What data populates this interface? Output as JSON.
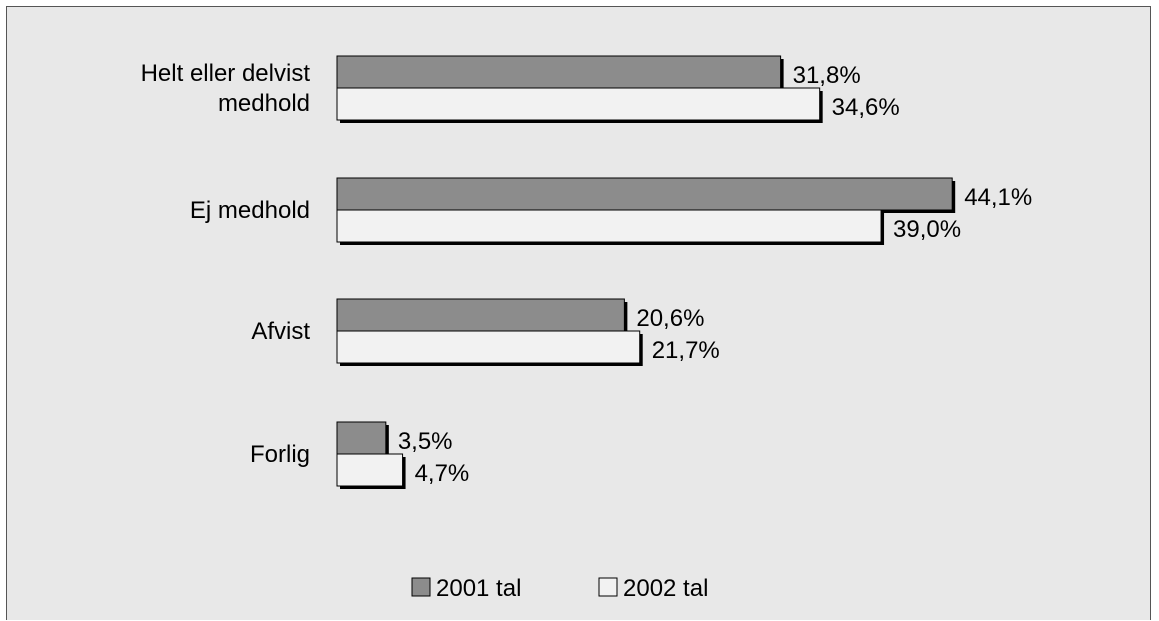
{
  "chart_data": {
    "type": "bar",
    "orientation": "horizontal",
    "categories": [
      [
        "Helt eller delvist",
        "medhold"
      ],
      [
        "Ej medhold"
      ],
      [
        "Afvist"
      ],
      [
        "Forlig"
      ]
    ],
    "series": [
      {
        "name": "2001 tal",
        "values": [
          31.8,
          44.1,
          20.6,
          3.5
        ],
        "labels": [
          "31,8%",
          "44,1%",
          "20,6%",
          "3,5%"
        ],
        "color": "#8c8c8c"
      },
      {
        "name": "2002 tal",
        "values": [
          34.6,
          39.0,
          21.7,
          4.7
        ],
        "labels": [
          "34,6%",
          "39,0%",
          "21,7%",
          "4,7%"
        ],
        "color": "#f2f2f2"
      }
    ],
    "xlim": [
      0,
      50
    ],
    "grid": false,
    "legend_position": "bottom",
    "background": "#e8e8e8"
  }
}
